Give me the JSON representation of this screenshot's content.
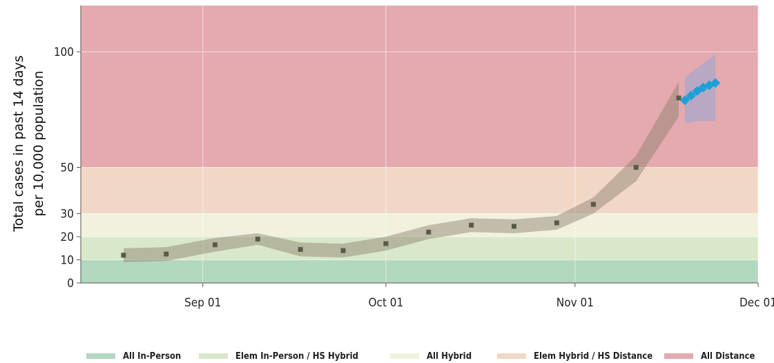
{
  "chart_data": {
    "type": "line",
    "ylabel": [
      "Total cases in past 14 days",
      "per 10,000 population"
    ],
    "xlabel": "",
    "yticks": [
      0,
      10,
      20,
      30,
      50,
      100
    ],
    "ylim": [
      0,
      120
    ],
    "xlim": [
      "2020-08-12",
      "2020-12-01"
    ],
    "xticks": [
      {
        "date": "2020-09-01",
        "label": "Sep 01"
      },
      {
        "date": "2020-10-01",
        "label": "Oct 01"
      },
      {
        "date": "2020-11-01",
        "label": "Nov 01"
      },
      {
        "date": "2020-12-01",
        "label": "Dec 01"
      }
    ],
    "zones": [
      {
        "name": "All In-Person",
        "from": 0,
        "to": 10,
        "color": "#b2d8bf"
      },
      {
        "name": "Elem In-Person / HS Hybrid",
        "from": 10,
        "to": 20,
        "color": "#d9e8c9"
      },
      {
        "name": "All Hybrid",
        "from": 20,
        "to": 30,
        "color": "#f1f1de"
      },
      {
        "name": "Elem Hybrid / HS Distance",
        "from": 30,
        "to": 50,
        "color": "#f1d8c6"
      },
      {
        "name": "All Distance",
        "from": 50,
        "to": 120,
        "color": "#e4aaaf"
      }
    ],
    "series": [
      {
        "kind": "observed",
        "color": "#5a5a4a",
        "x": [
          "2020-08-19",
          "2020-08-26",
          "2020-09-03",
          "2020-09-10",
          "2020-09-17",
          "2020-09-24",
          "2020-10-01",
          "2020-10-08",
          "2020-10-15",
          "2020-10-22",
          "2020-10-29",
          "2020-11-04",
          "2020-11-11",
          "2020-11-18"
        ],
        "y": [
          12,
          12.5,
          16.5,
          19,
          14.5,
          14,
          17,
          22,
          25,
          24.5,
          26,
          34,
          50,
          80
        ],
        "band_lower": [
          9,
          9.5,
          13.5,
          16.5,
          11.5,
          11,
          14,
          19,
          22,
          21.5,
          23,
          30,
          44,
          72
        ],
        "band_upper": [
          15,
          15.5,
          19.5,
          21.5,
          17.5,
          17,
          20,
          25,
          28,
          27.5,
          29,
          37,
          55,
          87
        ]
      },
      {
        "kind": "projected",
        "color": "#1ea0d8",
        "x": [
          "2020-11-19",
          "2020-11-20",
          "2020-11-21",
          "2020-11-22",
          "2020-11-23",
          "2020-11-24"
        ],
        "y": [
          79,
          81,
          83,
          84.5,
          85.5,
          86.5
        ],
        "band_lower": [
          69,
          69.5,
          70,
          70,
          70,
          70
        ],
        "band_upper": [
          89,
          91,
          93,
          95,
          97,
          99
        ]
      }
    ],
    "legend": {
      "placement": "bottom",
      "items": [
        "All In-Person",
        "Elem In-Person / HS Hybrid",
        "All Hybrid",
        "Elem Hybrid / HS Distance",
        "All Distance"
      ]
    },
    "grid": true
  }
}
